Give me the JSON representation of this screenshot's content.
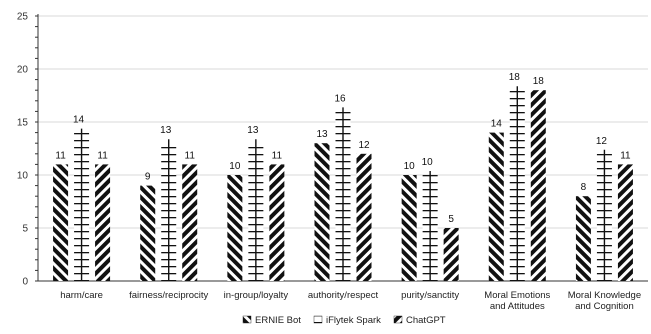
{
  "chart_data": {
    "type": "bar",
    "categories": [
      [
        "harm/care"
      ],
      [
        "fairness/reciprocity"
      ],
      [
        "in-group/loyalty"
      ],
      [
        "authority/respect"
      ],
      [
        "purity/sanctity"
      ],
      [
        "Moral Emotions",
        "and Attitudes"
      ],
      [
        "Moral Knowledge",
        "and Cognition"
      ]
    ],
    "series": [
      {
        "name": "ERNIE Bot",
        "values": [
          11,
          9,
          10,
          13,
          10,
          14,
          8
        ]
      },
      {
        "name": "iFlytek Spark",
        "values": [
          14,
          13,
          13,
          16,
          10,
          18,
          12
        ]
      },
      {
        "name": "ChatGPT",
        "values": [
          11,
          11,
          11,
          12,
          5,
          18,
          11
        ]
      }
    ],
    "ylim": [
      0,
      25
    ],
    "yticks": [
      0,
      5,
      10,
      15,
      20,
      25
    ],
    "grid": true,
    "legend_position": "bottom"
  }
}
